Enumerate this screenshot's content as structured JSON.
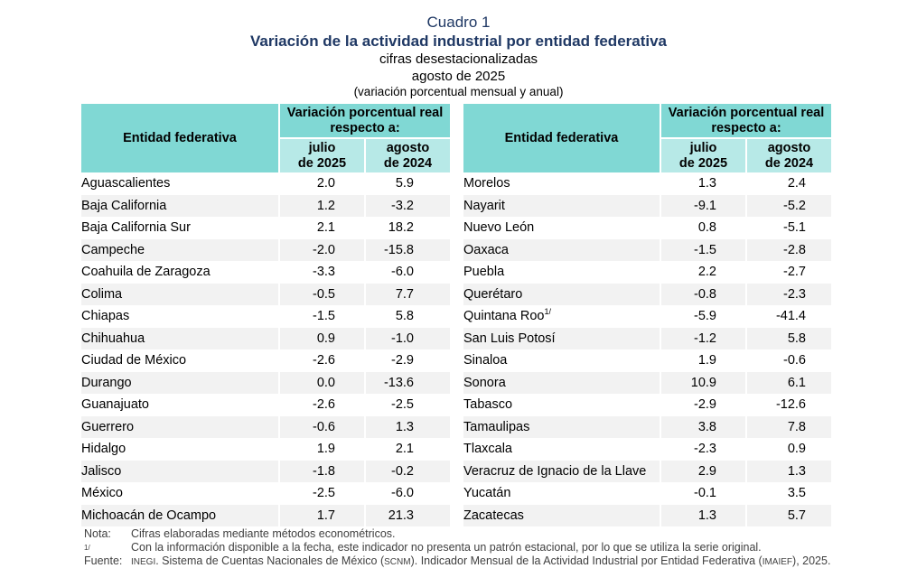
{
  "header": {
    "cuadro": "Cuadro 1",
    "title": "Variación de la actividad industrial por entidad federativa",
    "subtitle": "cifras desestacionalizadas",
    "period": "agosto de 2025",
    "units": "(variación porcentual mensual y anual)"
  },
  "table_headers": {
    "entity": "Entidad federativa",
    "variation": "Variación porcentual real respecto a:",
    "col1_line1": "julio",
    "col1_line2": "de 2025",
    "col2_line1": "agosto",
    "col2_line2": "de 2024"
  },
  "left_rows": [
    {
      "entity": "Aguascalientes",
      "julio_2025": "2.0",
      "agosto_2024": "5.9"
    },
    {
      "entity": "Baja California",
      "julio_2025": "1.2",
      "agosto_2024": "-3.2"
    },
    {
      "entity": "Baja California Sur",
      "julio_2025": "2.1",
      "agosto_2024": "18.2"
    },
    {
      "entity": "Campeche",
      "julio_2025": "-2.0",
      "agosto_2024": "-15.8"
    },
    {
      "entity": "Coahuila de Zaragoza",
      "julio_2025": "-3.3",
      "agosto_2024": "-6.0"
    },
    {
      "entity": "Colima",
      "julio_2025": "-0.5",
      "agosto_2024": "7.7"
    },
    {
      "entity": "Chiapas",
      "julio_2025": "-1.5",
      "agosto_2024": "5.8"
    },
    {
      "entity": "Chihuahua",
      "julio_2025": "0.9",
      "agosto_2024": "-1.0"
    },
    {
      "entity": "Ciudad de México",
      "julio_2025": "-2.6",
      "agosto_2024": "-2.9"
    },
    {
      "entity": "Durango",
      "julio_2025": "0.0",
      "agosto_2024": "-13.6"
    },
    {
      "entity": "Guanajuato",
      "julio_2025": "-2.6",
      "agosto_2024": "-2.5"
    },
    {
      "entity": "Guerrero",
      "julio_2025": "-0.6",
      "agosto_2024": "1.3"
    },
    {
      "entity": "Hidalgo",
      "julio_2025": "1.9",
      "agosto_2024": "2.1"
    },
    {
      "entity": "Jalisco",
      "julio_2025": "-1.8",
      "agosto_2024": "-0.2"
    },
    {
      "entity": "México",
      "julio_2025": "-2.5",
      "agosto_2024": "-6.0"
    },
    {
      "entity": "Michoacán de Ocampo",
      "julio_2025": "1.7",
      "agosto_2024": "21.3"
    }
  ],
  "right_rows": [
    {
      "entity": "Morelos",
      "julio_2025": "1.3",
      "agosto_2024": "2.4"
    },
    {
      "entity": "Nayarit",
      "julio_2025": "-9.1",
      "agosto_2024": "-5.2"
    },
    {
      "entity": "Nuevo León",
      "julio_2025": "0.8",
      "agosto_2024": "-5.1"
    },
    {
      "entity": "Oaxaca",
      "julio_2025": "-1.5",
      "agosto_2024": "-2.8"
    },
    {
      "entity": "Puebla",
      "julio_2025": "2.2",
      "agosto_2024": "-2.7"
    },
    {
      "entity": "Querétaro",
      "julio_2025": "-0.8",
      "agosto_2024": "-2.3"
    },
    {
      "entity": "Quintana Roo",
      "sup": "1/",
      "julio_2025": "-5.9",
      "agosto_2024": "-41.4"
    },
    {
      "entity": "San Luis Potosí",
      "julio_2025": "-1.2",
      "agosto_2024": "5.8"
    },
    {
      "entity": "Sinaloa",
      "julio_2025": "1.9",
      "agosto_2024": "-0.6"
    },
    {
      "entity": "Sonora",
      "julio_2025": "10.9",
      "agosto_2024": "6.1"
    },
    {
      "entity": "Tabasco",
      "julio_2025": "-2.9",
      "agosto_2024": "-12.6"
    },
    {
      "entity": "Tamaulipas",
      "julio_2025": "3.8",
      "agosto_2024": "7.8"
    },
    {
      "entity": "Tlaxcala",
      "julio_2025": "-2.3",
      "agosto_2024": "0.9"
    },
    {
      "entity": "Veracruz de Ignacio de la Llave",
      "julio_2025": "2.9",
      "agosto_2024": "1.3"
    },
    {
      "entity": "Yucatán",
      "julio_2025": "-0.1",
      "agosto_2024": "3.5"
    },
    {
      "entity": "Zacatecas",
      "julio_2025": "1.3",
      "agosto_2024": "5.7"
    }
  ],
  "notes": {
    "nota_label": "Nota:",
    "nota_text": "Cifras elaboradas mediante métodos econométricos.",
    "footnote_label": "1/",
    "footnote_text": "Con la información disponible a la fecha, este indicador no presenta un patrón estacional, por lo que se utiliza la serie original.",
    "fuente_label": "Fuente:",
    "fuente_inegi": "INEGI",
    "fuente_text_a": ". Sistema de Cuentas Nacionales de México (",
    "fuente_scnm": "SCNM",
    "fuente_text_b": "). Indicador Mensual de la Actividad Industrial por Entidad Federativa (",
    "fuente_imaief": "IMAIEF",
    "fuente_text_c": "), 2025."
  },
  "colors": {
    "header_dark": "#80d8d4",
    "header_light": "#b7e9e7",
    "title": "#1f3864",
    "row_alt": "#f2f2f2"
  }
}
